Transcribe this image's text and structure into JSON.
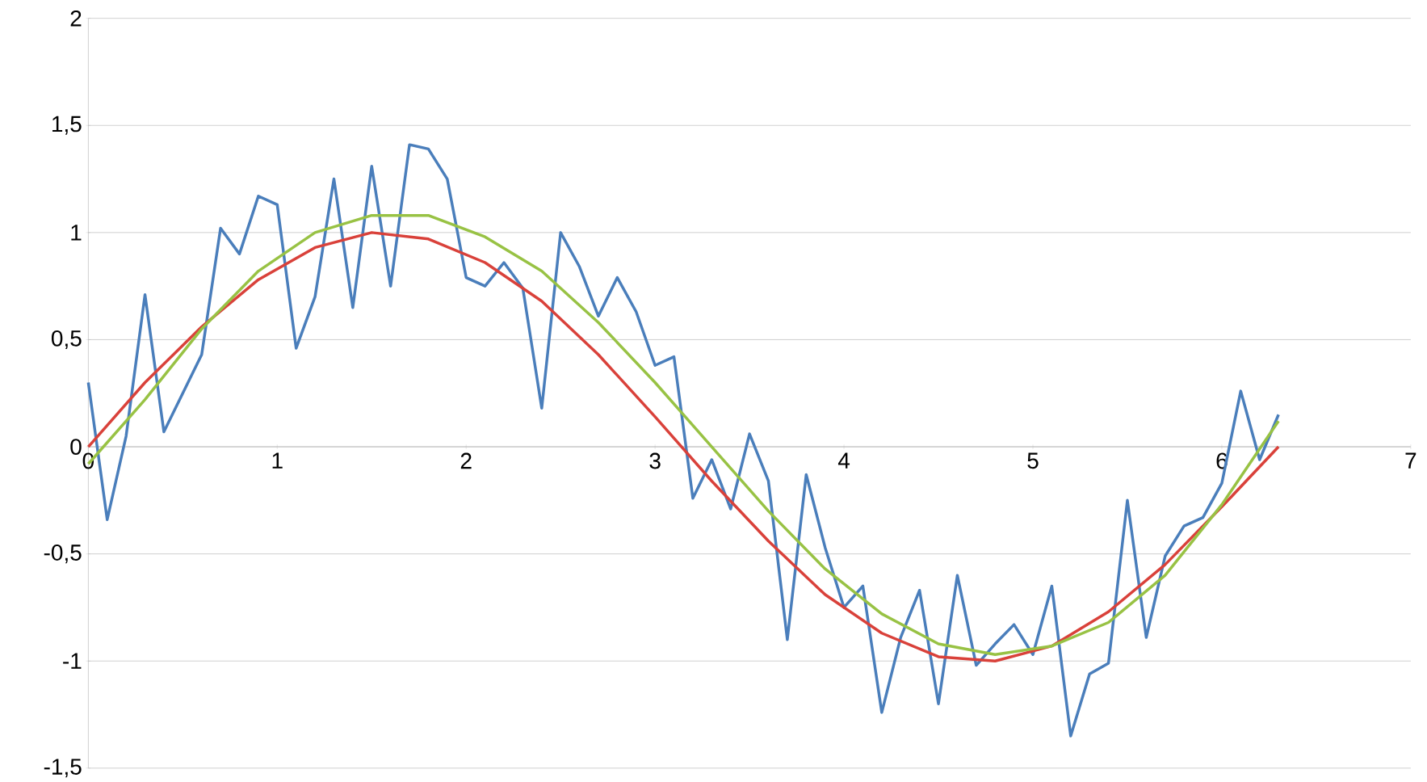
{
  "chart_data": {
    "type": "line",
    "xlim": [
      0,
      7
    ],
    "ylim": [
      -1.5,
      2
    ],
    "xticks": [
      0,
      1,
      2,
      3,
      4,
      5,
      6,
      7
    ],
    "yticks": [
      {
        "value": -1.5,
        "label": "-1,5"
      },
      -1,
      {
        "value": -0.5,
        "label": "-0,5"
      },
      0,
      {
        "value": 0.5,
        "label": "0,5"
      },
      1,
      {
        "value": 1.5,
        "label": "1,5"
      },
      2
    ],
    "grid": "y",
    "marker": "none",
    "line_style": "solid",
    "series": [
      {
        "color": "#4a7ebb",
        "x": [
          0,
          0.1,
          0.2,
          0.3,
          0.4,
          0.5,
          0.6,
          0.7,
          0.8,
          0.9,
          1.0,
          1.1,
          1.2,
          1.3,
          1.4,
          1.5,
          1.6,
          1.7,
          1.8,
          1.9,
          2.0,
          2.1,
          2.2,
          2.3,
          2.4,
          2.5,
          2.6,
          2.7,
          2.8,
          2.9,
          3.0,
          3.1,
          3.2,
          3.3,
          3.4,
          3.5,
          3.6,
          3.7,
          3.8,
          3.9,
          4.0,
          4.1,
          4.2,
          4.3,
          4.4,
          4.5,
          4.6,
          4.7,
          4.8,
          4.9,
          5.0,
          5.1,
          5.2,
          5.3,
          5.4,
          5.5,
          5.6,
          5.7,
          5.8,
          5.9,
          6.0,
          6.1,
          6.2,
          6.3
        ],
        "values": [
          0.3,
          -0.34,
          0.05,
          0.71,
          0.07,
          0.25,
          0.43,
          1.02,
          0.9,
          1.17,
          1.13,
          0.46,
          0.7,
          1.25,
          0.65,
          1.31,
          0.75,
          1.41,
          1.39,
          1.25,
          0.79,
          0.75,
          0.86,
          0.74,
          0.18,
          1.0,
          0.84,
          0.61,
          0.79,
          0.63,
          0.38,
          0.42,
          -0.24,
          -0.06,
          -0.29,
          0.06,
          -0.16,
          -0.9,
          -0.13,
          -0.47,
          -0.75,
          -0.65,
          -1.24,
          -0.89,
          -0.67,
          -1.2,
          -0.6,
          -1.02,
          -0.92,
          -0.83,
          -0.97,
          -0.65,
          -1.35,
          -1.06,
          -1.01,
          -0.25,
          -0.89,
          -0.51,
          -0.37,
          -0.33,
          -0.17,
          0.26,
          -0.06,
          0.15
        ]
      },
      {
        "color": "#d9413a",
        "x": [
          0,
          0.3,
          0.6,
          0.9,
          1.2,
          1.5,
          1.8,
          2.1,
          2.4,
          2.7,
          3.0,
          3.3,
          3.6,
          3.9,
          4.2,
          4.5,
          4.8,
          5.1,
          5.4,
          5.7,
          6.0,
          6.3
        ],
        "values": [
          0,
          0.3,
          0.56,
          0.78,
          0.93,
          1.0,
          0.97,
          0.86,
          0.68,
          0.43,
          0.14,
          -0.16,
          -0.44,
          -0.69,
          -0.87,
          -0.98,
          -1.0,
          -0.93,
          -0.77,
          -0.55,
          -0.28,
          0.0
        ]
      },
      {
        "color": "#98c244",
        "x": [
          0,
          0.3,
          0.6,
          0.9,
          1.2,
          1.5,
          1.8,
          2.1,
          2.4,
          2.7,
          3.0,
          3.3,
          3.6,
          3.9,
          4.2,
          4.5,
          4.8,
          5.1,
          5.4,
          5.7,
          6.0,
          6.3
        ],
        "values": [
          -0.08,
          0.22,
          0.55,
          0.82,
          1.0,
          1.08,
          1.08,
          0.98,
          0.82,
          0.58,
          0.3,
          0.0,
          -0.3,
          -0.57,
          -0.78,
          -0.92,
          -0.97,
          -0.93,
          -0.82,
          -0.6,
          -0.27,
          0.12
        ]
      }
    ]
  }
}
